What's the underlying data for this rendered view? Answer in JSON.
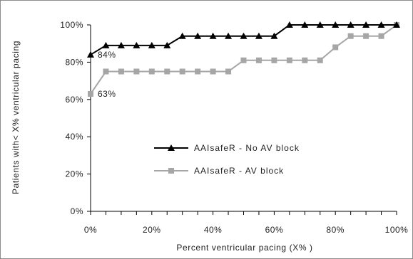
{
  "chart_data": {
    "type": "line",
    "xlabel": "Percent ventricular pacing (X% )",
    "ylabel": "Patients with< X% ventricular pacing",
    "x_ticks": [
      "0%",
      "20%",
      "40%",
      "60%",
      "80%",
      "100%"
    ],
    "y_ticks": [
      "0%",
      "20%",
      "40%",
      "60%",
      "80%",
      "100%"
    ],
    "xlim": [
      0,
      100
    ],
    "ylim": [
      0,
      100
    ],
    "grid": false,
    "legend_position": "center-left",
    "x": [
      0,
      5,
      10,
      15,
      20,
      25,
      30,
      35,
      40,
      45,
      50,
      55,
      60,
      65,
      70,
      75,
      80,
      85,
      90,
      95,
      100
    ],
    "series": [
      {
        "name": "AAIsafeR - No AV block",
        "color": "#000000",
        "marker": "triangle",
        "values": [
          84,
          89,
          89,
          89,
          89,
          89,
          94,
          94,
          94,
          94,
          94,
          94,
          94,
          100,
          100,
          100,
          100,
          100,
          100,
          100,
          100
        ]
      },
      {
        "name": "AAIsafeR - AV block",
        "color": "#a6a6a6",
        "marker": "square",
        "values": [
          63,
          75,
          75,
          75,
          75,
          75,
          75,
          75,
          75,
          75,
          81,
          81,
          81,
          81,
          81,
          81,
          88,
          94,
          94,
          94,
          100
        ]
      }
    ],
    "annotations": [
      {
        "text": "84%",
        "x": 0,
        "y": 84
      },
      {
        "text": "63%",
        "x": 0,
        "y": 63
      }
    ]
  }
}
